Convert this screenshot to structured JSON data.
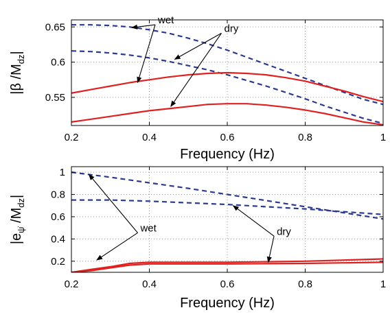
{
  "chart_data": [
    {
      "type": "line",
      "xlabel": "Frequency (Hz)",
      "ylabel": "|β /M",
      "ylabel_sub": "dz",
      "ylabel_close": "|",
      "xlim": [
        0.2,
        1.0
      ],
      "ylim": [
        0.51,
        0.66
      ],
      "x_ticks": [
        "0.2",
        "0.4",
        "0.6",
        "0.8",
        "1"
      ],
      "x_tick_values": [
        0.2,
        0.4,
        0.6,
        0.8,
        1.0
      ],
      "y_ticks": [
        "0.55",
        "0.6",
        "0.65"
      ],
      "y_tick_values": [
        0.55,
        0.6,
        0.65
      ],
      "grid": true,
      "series": [
        {
          "style": "dashed",
          "color": "#2b3a8f",
          "x": [
            0.2,
            0.25,
            0.3,
            0.35,
            0.4,
            0.45,
            0.5,
            0.55,
            0.6,
            0.65,
            0.7,
            0.75,
            0.8,
            0.85,
            0.9,
            0.95,
            1.0
          ],
          "y": [
            0.653,
            0.653,
            0.652,
            0.65,
            0.646,
            0.641,
            0.634,
            0.626,
            0.617,
            0.607,
            0.597,
            0.587,
            0.577,
            0.567,
            0.557,
            0.547,
            0.54
          ]
        },
        {
          "style": "dashed",
          "color": "#2b3a8f",
          "x": [
            0.2,
            0.25,
            0.3,
            0.35,
            0.4,
            0.45,
            0.5,
            0.55,
            0.6,
            0.65,
            0.7,
            0.75,
            0.8,
            0.85,
            0.9,
            0.95,
            1.0
          ],
          "y": [
            0.616,
            0.615,
            0.613,
            0.61,
            0.606,
            0.601,
            0.595,
            0.589,
            0.582,
            0.574,
            0.566,
            0.557,
            0.548,
            0.538,
            0.529,
            0.52,
            0.513
          ]
        },
        {
          "style": "solid",
          "color": "#e0201f",
          "x": [
            0.2,
            0.25,
            0.3,
            0.35,
            0.4,
            0.45,
            0.5,
            0.55,
            0.6,
            0.65,
            0.7,
            0.75,
            0.8,
            0.85,
            0.9,
            0.95,
            1.0
          ],
          "y": [
            0.556,
            0.561,
            0.566,
            0.571,
            0.575,
            0.579,
            0.582,
            0.584,
            0.585,
            0.584,
            0.582,
            0.578,
            0.573,
            0.566,
            0.559,
            0.551,
            0.544
          ]
        },
        {
          "style": "solid",
          "color": "#e0201f",
          "x": [
            0.2,
            0.25,
            0.3,
            0.35,
            0.4,
            0.45,
            0.5,
            0.55,
            0.6,
            0.65,
            0.7,
            0.75,
            0.8,
            0.85,
            0.9,
            0.95,
            1.0
          ],
          "y": [
            0.515,
            0.519,
            0.523,
            0.527,
            0.531,
            0.534,
            0.537,
            0.54,
            0.541,
            0.541,
            0.539,
            0.536,
            0.532,
            0.527,
            0.521,
            0.515,
            0.511
          ]
        }
      ],
      "annotations": [
        {
          "text": "wet",
          "label_at": [
            0.415,
            0.657
          ],
          "arrows_to": [
            [
              0.355,
              0.649
            ],
            [
              0.37,
              0.571
            ]
          ]
        },
        {
          "text": "dry",
          "label_at": [
            0.585,
            0.645
          ],
          "arrows_to": [
            [
              0.465,
              0.604
            ],
            [
              0.455,
              0.537
            ]
          ]
        }
      ]
    },
    {
      "type": "line",
      "xlabel": "Frequency (Hz)",
      "ylabel": "|e",
      "ylabel_sub": "ψ̇",
      "ylabel_mid": " /M",
      "ylabel_sub2": "dz",
      "ylabel_close": "|",
      "xlim": [
        0.2,
        1.0
      ],
      "ylim": [
        0.1,
        1.05
      ],
      "x_ticks": [
        "0.2",
        "0.4",
        "0.6",
        "0.8",
        "1"
      ],
      "x_tick_values": [
        0.2,
        0.4,
        0.6,
        0.8,
        1.0
      ],
      "y_ticks": [
        "0.2",
        "0.4",
        "0.6",
        "0.8",
        "1"
      ],
      "y_tick_values": [
        0.2,
        0.4,
        0.6,
        0.8,
        1.0
      ],
      "grid": true,
      "series": [
        {
          "style": "dashed",
          "color": "#2b3a8f",
          "x": [
            0.2,
            0.3,
            0.4,
            0.5,
            0.6,
            0.7,
            0.8,
            0.9,
            1.0
          ],
          "y": [
            1.0,
            0.955,
            0.905,
            0.855,
            0.8,
            0.745,
            0.69,
            0.635,
            0.58
          ]
        },
        {
          "style": "dashed",
          "color": "#2b3a8f",
          "x": [
            0.2,
            0.3,
            0.4,
            0.5,
            0.6,
            0.7,
            0.8,
            0.9,
            1.0
          ],
          "y": [
            0.75,
            0.75,
            0.74,
            0.725,
            0.71,
            0.69,
            0.67,
            0.645,
            0.62
          ]
        },
        {
          "style": "solid",
          "color": "#e0201f",
          "x": [
            0.2,
            0.25,
            0.3,
            0.35,
            0.4,
            0.5,
            0.6,
            0.7,
            0.8,
            0.9,
            1.0
          ],
          "y": [
            0.1,
            0.125,
            0.15,
            0.18,
            0.19,
            0.19,
            0.19,
            0.195,
            0.2,
            0.21,
            0.22
          ]
        },
        {
          "style": "solid",
          "color": "#e0201f",
          "x": [
            0.2,
            0.25,
            0.3,
            0.35,
            0.4,
            0.5,
            0.6,
            0.7,
            0.8,
            0.9,
            1.0
          ],
          "y": [
            0.1,
            0.115,
            0.14,
            0.165,
            0.175,
            0.175,
            0.175,
            0.178,
            0.18,
            0.185,
            0.19
          ]
        }
      ],
      "annotations": [
        {
          "text": "wet",
          "label_at": [
            0.37,
            0.48
          ],
          "arrows_to": [
            [
              0.245,
              0.98
            ],
            [
              0.265,
              0.21
            ]
          ]
        },
        {
          "text": "dry",
          "label_at": [
            0.72,
            0.45
          ],
          "arrows_to": [
            [
              0.615,
              0.7
            ],
            [
              0.705,
              0.19
            ]
          ]
        }
      ]
    }
  ]
}
